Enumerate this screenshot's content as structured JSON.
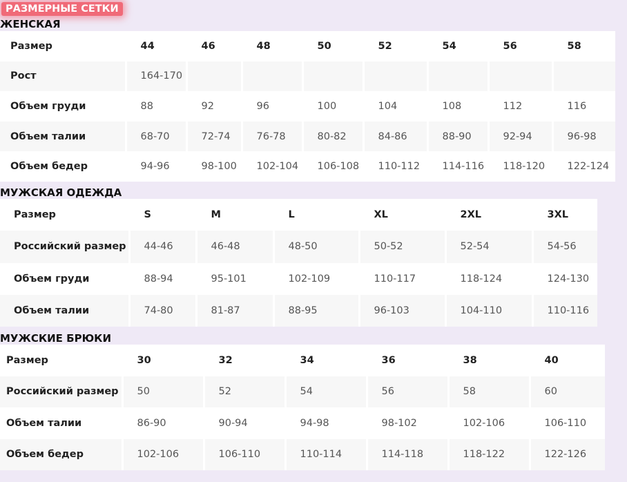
{
  "badge": "РАЗМЕРНЫЕ СЕТКИ",
  "women": {
    "title": "ЖЕНСКАЯ",
    "header": {
      "label": "Размер",
      "values": [
        "44",
        "46",
        "48",
        "50",
        "52",
        "54",
        "56",
        "58"
      ]
    },
    "rows": [
      {
        "label": "Рост",
        "values": [
          "164-170",
          "",
          "",
          "",
          "",
          "",
          "",
          ""
        ]
      },
      {
        "label": "Объем груди",
        "values": [
          "88",
          "92",
          "96",
          "100",
          "104",
          "108",
          "112",
          "116"
        ]
      },
      {
        "label": "Объем талии",
        "values": [
          "68-70",
          "72-74",
          "76-78",
          "80-82",
          "84-86",
          "88-90",
          "92-94",
          "96-98"
        ]
      },
      {
        "label": "Объем бедер",
        "values": [
          "94-96",
          "98-100",
          "102-104",
          "106-108",
          "110-112",
          "114-116",
          "118-120",
          "122-124"
        ]
      }
    ]
  },
  "men": {
    "title": "МУЖСКАЯ ОДЕЖДА",
    "header": {
      "label": "Размер",
      "values": [
        "S",
        "M",
        "L",
        "XL",
        "2XL",
        "3XL"
      ]
    },
    "rows": [
      {
        "label": "Российский размер",
        "values": [
          "44-46",
          "46-48",
          "48-50",
          "50-52",
          "52-54",
          "54-56"
        ]
      },
      {
        "label": "Объем груди",
        "values": [
          "88-94",
          "95-101",
          "102-109",
          "110-117",
          "118-124",
          "124-130"
        ]
      },
      {
        "label": "Объем талии",
        "values": [
          "74-80",
          "81-87",
          "88-95",
          "96-103",
          "104-110",
          "110-116"
        ]
      }
    ]
  },
  "trousers": {
    "title": "МУЖСКИЕ БРЮКИ",
    "header": {
      "label": "Размер",
      "values": [
        "30",
        "32",
        "34",
        "36",
        "38",
        "40"
      ]
    },
    "rows": [
      {
        "label": "Российский размер",
        "values": [
          "50",
          "52",
          "54",
          "56",
          "58",
          "60"
        ]
      },
      {
        "label": "Объем талии",
        "values": [
          "86-90",
          "90-94",
          "94-98",
          "98-102",
          "102-106",
          "106-110"
        ]
      },
      {
        "label": "Объем бедер",
        "values": [
          "102-106",
          "106-110",
          "110-114",
          "114-118",
          "118-122",
          "122-126"
        ]
      }
    ]
  }
}
